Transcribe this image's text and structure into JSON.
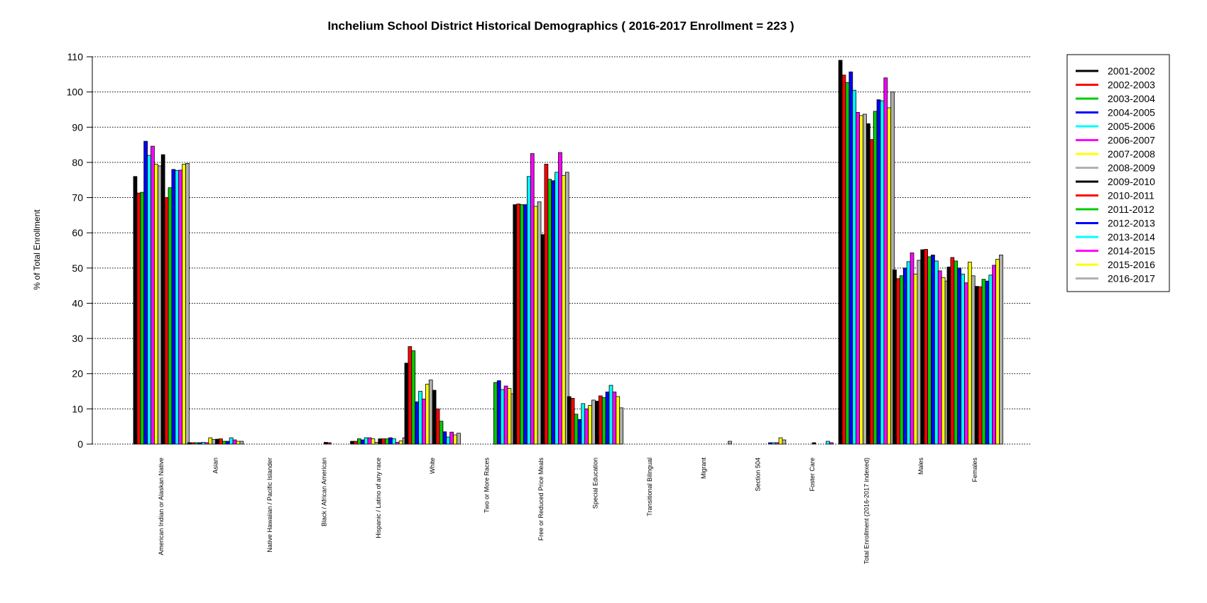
{
  "chart_data": {
    "type": "bar",
    "title": "Inchelium School District Historical Demographics  ( 2016-2017 Enrollment =  223 )",
    "xlabel": "",
    "ylabel": "% of Total Enrollment",
    "ylim": [
      0,
      110
    ],
    "yticks": [
      0,
      10,
      20,
      30,
      40,
      50,
      60,
      70,
      80,
      90,
      100,
      110
    ],
    "grid": "horizontal dotted",
    "legend_position": "top-right",
    "categories": [
      "American Indian or Alaskan Native",
      "Asian",
      "Native Hawaiian / Pacific Islander",
      "Black / African American",
      "Hispanic / Latino of any race",
      "White",
      "Two or More Races",
      "Free or Reduced Price Meals",
      "Special Education",
      "Transitional Bilingual",
      "Migrant",
      "Section 504",
      "Foster Care",
      "Total Enrollment (2016-2017 indexed)",
      "Males",
      "Females"
    ],
    "series": [
      {
        "name": "2001-2002",
        "color": "#000000",
        "values": [
          76,
          0.4,
          0,
          0,
          0.8,
          23,
          0,
          68,
          13.5,
          0,
          0,
          0,
          0,
          109,
          49.5,
          50.3
        ]
      },
      {
        "name": "2002-2003",
        "color": "#ff0000",
        "values": [
          71.3,
          0.4,
          0,
          0,
          0.8,
          27.7,
          0,
          68.2,
          13,
          0,
          0,
          0,
          0,
          104.8,
          47,
          53
        ]
      },
      {
        "name": "2003-2004",
        "color": "#00cc00",
        "values": [
          71.5,
          0.4,
          0,
          0,
          1.5,
          26.5,
          0,
          68,
          8.5,
          0,
          0,
          0,
          0,
          102.7,
          47.8,
          52
        ]
      },
      {
        "name": "2004-2005",
        "color": "#0000ff",
        "values": [
          86,
          0.4,
          0,
          0,
          1.2,
          12,
          0,
          68,
          7,
          0,
          0,
          0,
          0,
          105.7,
          50,
          50
        ]
      },
      {
        "name": "2005-2006",
        "color": "#00ffff",
        "values": [
          82,
          0.5,
          0,
          0,
          1.8,
          15,
          0,
          76,
          11.5,
          0,
          0,
          0,
          0,
          100.5,
          51.8,
          48.3
        ]
      },
      {
        "name": "2006-2007",
        "color": "#ff00ff",
        "values": [
          84.6,
          0.4,
          0,
          0,
          1.8,
          12.8,
          0,
          82.5,
          10,
          0,
          0,
          0,
          0,
          94.2,
          54.3,
          45.8
        ]
      },
      {
        "name": "2007-2008",
        "color": "#ffff00",
        "values": [
          79.5,
          1.8,
          0,
          0,
          1.5,
          17,
          0,
          67.5,
          11,
          0,
          0,
          0,
          0,
          93.3,
          48.3,
          51.7
        ]
      },
      {
        "name": "2008-2009",
        "color": "#b0b0b0",
        "values": [
          79,
          1.3,
          0,
          0,
          0.5,
          18.2,
          0,
          68.8,
          12.5,
          0,
          0,
          0,
          0,
          93.7,
          52.2,
          47.8
        ]
      },
      {
        "name": "2009-2010",
        "color": "#000000",
        "values": [
          82.2,
          1.4,
          0,
          0.5,
          1.5,
          15.3,
          0,
          59.5,
          12.2,
          0,
          0,
          0,
          0.4,
          91,
          55.2,
          44.8
        ]
      },
      {
        "name": "2010-2011",
        "color": "#ff0000",
        "values": [
          70,
          1.5,
          0,
          0.4,
          1.5,
          10,
          0,
          79.5,
          13.7,
          0,
          0,
          0,
          0,
          86.5,
          55.3,
          44.7
        ]
      },
      {
        "name": "2011-2012",
        "color": "#00cc00",
        "values": [
          72.8,
          0.8,
          0,
          0,
          1.5,
          6.5,
          17.5,
          75.2,
          13.2,
          0,
          0,
          0,
          0,
          94.5,
          53.2,
          46.8
        ]
      },
      {
        "name": "2012-2013",
        "color": "#0000ff",
        "values": [
          78,
          0.8,
          0,
          0,
          1.8,
          3.5,
          18,
          74.8,
          14.8,
          0,
          0,
          0.4,
          0,
          97.8,
          53.7,
          46.3
        ]
      },
      {
        "name": "2013-2014",
        "color": "#00ffff",
        "values": [
          77.7,
          1.8,
          0,
          0,
          1.5,
          2,
          15.5,
          77.2,
          16.7,
          0,
          0,
          0.4,
          0.8,
          97.5,
          52,
          48
        ]
      },
      {
        "name": "2014-2015",
        "color": "#ff00ff",
        "values": [
          77.8,
          1.2,
          0,
          0,
          0.5,
          3.4,
          16.5,
          82.8,
          14.8,
          0,
          0,
          0.4,
          0.4,
          104,
          49.2,
          50.8
        ]
      },
      {
        "name": "2015-2016",
        "color": "#ffff00",
        "values": [
          79.5,
          0.8,
          0,
          0,
          0.9,
          2.6,
          15.8,
          76.3,
          13.5,
          0,
          0,
          1.8,
          0,
          95.5,
          47.3,
          52.5
        ]
      },
      {
        "name": "2016-2017",
        "color": "#b0b0b0",
        "values": [
          79.7,
          0.8,
          0,
          0,
          1.8,
          3.1,
          14.3,
          77.2,
          10.3,
          0,
          0.8,
          1.2,
          0,
          100,
          46.3,
          53.7
        ]
      }
    ]
  }
}
